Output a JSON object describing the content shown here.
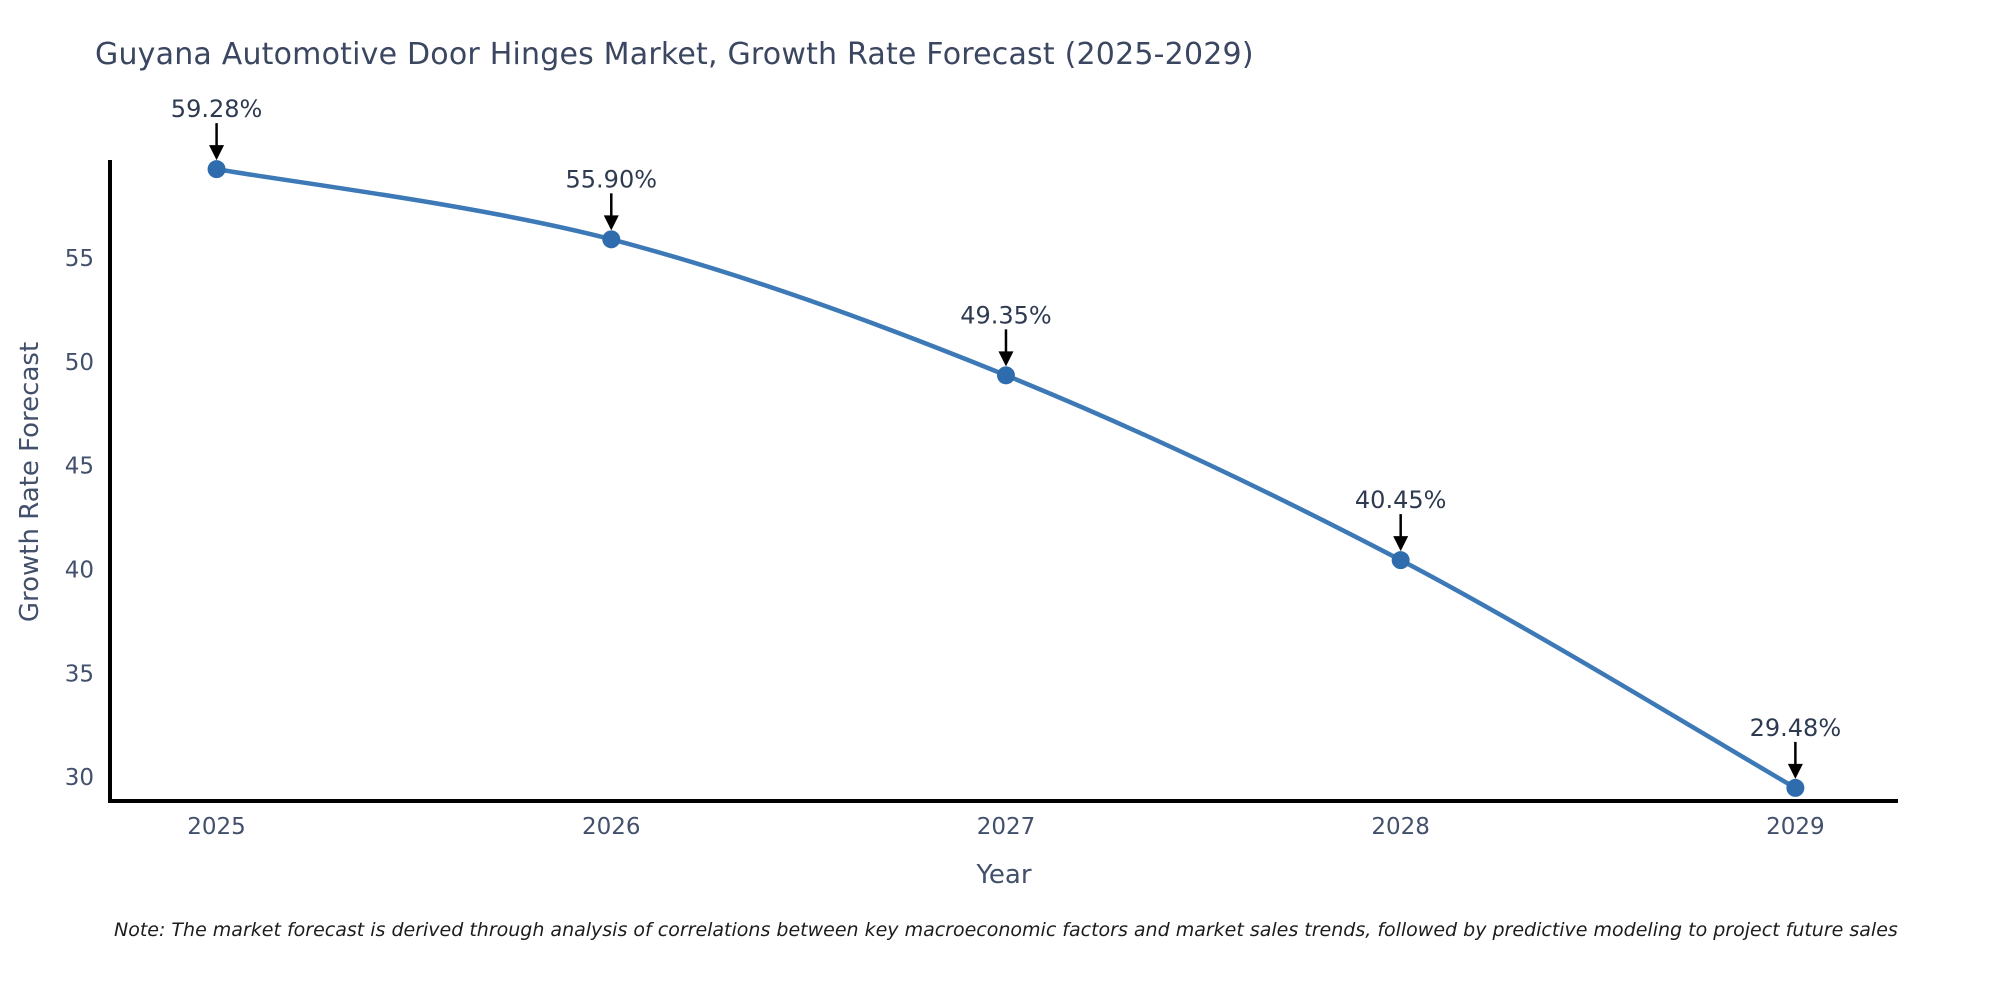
{
  "title": "Guyana Automotive Door Hinges Market, Growth Rate Forecast (2025-2029)",
  "note": "Note: The market forecast is derived through analysis of correlations between key macroeconomic factors and market sales trends, followed by predictive modeling to project future sales",
  "colors": {
    "line": "#3c79b6",
    "marker": "#2f6cad",
    "axis": "#000000",
    "tick_text": "#42506b",
    "title_text": "#3b4660",
    "annotation_text": "#2e3a50",
    "arrow": "#000000",
    "note_text": "#1c1c1c",
    "background": "#ffffff"
  },
  "chart_data": {
    "type": "line",
    "title": "Guyana Automotive Door Hinges Market, Growth Rate Forecast (2025-2029)",
    "x": [
      2025,
      2026,
      2027,
      2028,
      2029
    ],
    "x_tick_labels": [
      "2025",
      "2026",
      "2027",
      "2028",
      "2029"
    ],
    "series": [
      {
        "name": "Growth Rate Forecast",
        "values": [
          59.28,
          55.9,
          49.35,
          40.45,
          29.48
        ]
      }
    ],
    "point_labels": [
      "59.28%",
      "55.90%",
      "49.35%",
      "40.45%",
      "29.48%"
    ],
    "xlabel": "Year",
    "ylabel": "Growth Rate Forecast",
    "yticks": [
      30,
      35,
      40,
      45,
      50,
      55
    ],
    "xlim": [
      2024.73,
      2029.26
    ],
    "ylim": [
      28.85,
      59.72
    ],
    "grid": false,
    "legend": "none",
    "marker_style": "circle",
    "annotations": "value labels with downward arrows above each data point"
  }
}
